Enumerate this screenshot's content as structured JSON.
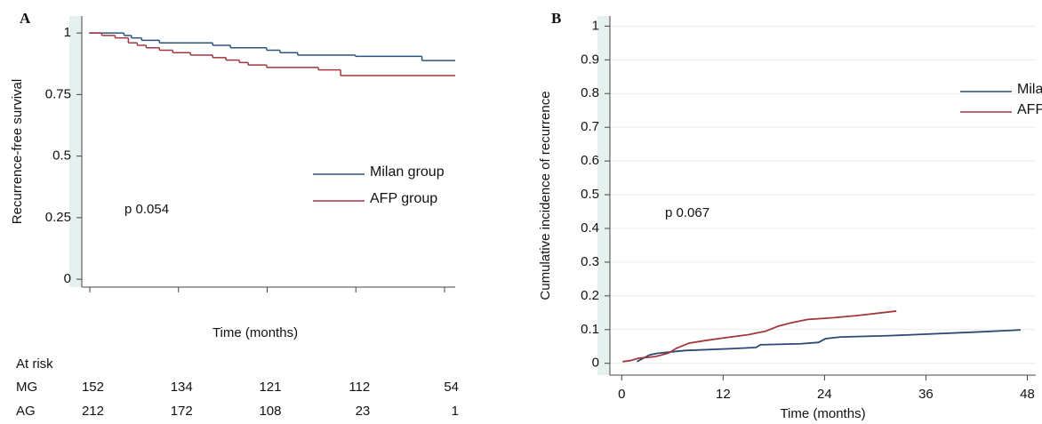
{
  "chart_data": [
    {
      "type": "step",
      "title": "A",
      "ylabel": "Recurrence-free survival",
      "xlabel": "Time (months)",
      "annotation": "p 0.054",
      "legend": "right",
      "xlim": [
        -1,
        49.5
      ],
      "ylim": [
        -0.032,
        1.069
      ],
      "yticks": [
        0,
        0.25,
        0.5,
        0.75,
        1
      ],
      "grid": false,
      "series": [
        {
          "name": "Milan group",
          "color": "#2b5580",
          "x": [
            0,
            4.7,
            5.7,
            7.1,
            9.5,
            16.7,
            19.1,
            24,
            25.8,
            28.2,
            36,
            45
          ],
          "values": [
            1,
            0.99,
            0.98,
            0.97,
            0.96,
            0.95,
            0.94,
            0.93,
            0.92,
            0.91,
            0.905,
            0.888
          ]
        },
        {
          "name": "AFP group",
          "color": "#a3363f",
          "x": [
            0,
            1.7,
            3.5,
            5.3,
            6.5,
            7.7,
            9.5,
            11.3,
            13.7,
            16.7,
            18.5,
            20.3,
            21.5,
            24,
            31,
            34
          ],
          "values": [
            1,
            0.99,
            0.98,
            0.96,
            0.95,
            0.94,
            0.93,
            0.92,
            0.91,
            0.9,
            0.89,
            0.88,
            0.87,
            0.86,
            0.85,
            0.827
          ]
        }
      ],
      "at_risk": {
        "title": "At risk",
        "rows": [
          {
            "label": "MG",
            "values": [
              152,
              134,
              121,
              112,
              54
            ]
          },
          {
            "label": "AG",
            "values": [
              212,
              172,
              108,
              23,
              1
            ]
          }
        ]
      }
    },
    {
      "type": "line",
      "title": "B",
      "ylabel": "Cumulative incidence of recurrence",
      "xlabel": "Time (months)",
      "annotation": "p 0.067",
      "legend": "upper right",
      "xlim": [
        -1.4,
        49
      ],
      "ylim": [
        -0.035,
        1.03
      ],
      "xticks": [
        0,
        12,
        24,
        36,
        48
      ],
      "yticks": [
        0,
        0.1,
        0.2,
        0.3,
        0.4,
        0.5,
        0.6,
        0.7,
        0.8,
        0.9,
        1
      ],
      "grid": true,
      "series": [
        {
          "name": "Milan group",
          "color": "#2b4a70",
          "x": [
            1.8,
            3.3,
            4.3,
            7.5,
            12.7,
            15.9,
            16.4,
            21.2,
            23.3,
            24.1,
            25.9,
            31.7,
            42.2,
            47.2
          ],
          "values": [
            0.005,
            0.025,
            0.03,
            0.038,
            0.043,
            0.047,
            0.055,
            0.058,
            0.062,
            0.073,
            0.078,
            0.082,
            0.093,
            0.099
          ]
        },
        {
          "name": "AFP group",
          "color": "#a3363f",
          "x": [
            0.1,
            1,
            2,
            4,
            5.5,
            6.5,
            8,
            10,
            12,
            15,
            17,
            18.5,
            20,
            22,
            25,
            28,
            32.5
          ],
          "values": [
            0.005,
            0.008,
            0.015,
            0.02,
            0.03,
            0.045,
            0.06,
            0.068,
            0.075,
            0.085,
            0.095,
            0.11,
            0.12,
            0.13,
            0.135,
            0.142,
            0.155
          ]
        }
      ]
    }
  ]
}
